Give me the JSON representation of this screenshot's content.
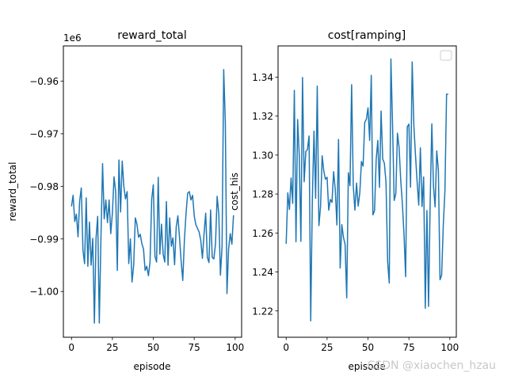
{
  "figure": {
    "watermark": "CSDN @xiaochen_hzau",
    "line_color": "#1f77b4"
  },
  "chart_data": [
    {
      "type": "line",
      "title": "reward_total",
      "xlabel": "episode",
      "ylabel": "reward_total",
      "offset_label": "1e6",
      "xlim": [
        -4.95,
        103.95
      ],
      "ylim": [
        -1.0087,
        -0.9533
      ],
      "xticks": [
        0,
        25,
        50,
        75,
        100
      ],
      "yticks": [
        -0.96,
        -0.97,
        -0.98,
        -0.99,
        -1.0
      ],
      "ytick_labels": [
        "−0.96",
        "−0.97",
        "−0.98",
        "−0.99",
        "−1.00"
      ],
      "legend": "none",
      "series": [
        {
          "name": "reward_total",
          "values": [
            -0.9838,
            -0.9817,
            -0.9867,
            -0.9853,
            -0.9896,
            -0.9828,
            -0.9803,
            -0.9921,
            -0.9947,
            -0.9822,
            -0.9952,
            -0.9868,
            -0.995,
            -0.9899,
            -1.006,
            -0.9899,
            -0.9857,
            -1.006,
            -0.9898,
            -0.9757,
            -0.9862,
            -0.9826,
            -0.9869,
            -0.9826,
            -0.989,
            -0.9851,
            -0.9782,
            -0.981,
            -0.996,
            -0.975,
            -0.9849,
            -0.9752,
            -0.98,
            -0.9824,
            -0.981,
            -0.9947,
            -0.99,
            -0.9982,
            -0.995,
            -0.986,
            -0.9872,
            -0.9897,
            -0.9891,
            -0.9909,
            -0.9919,
            -0.996,
            -0.9952,
            -0.997,
            -0.9944,
            -0.9825,
            -0.9797,
            -0.9933,
            -0.9944,
            -0.9783,
            -0.9929,
            -0.9872,
            -0.9929,
            -0.9944,
            -0.9829,
            -0.995,
            -0.986,
            -0.9914,
            -0.9898,
            -0.9949,
            -0.9877,
            -0.9856,
            -0.9897,
            -0.9942,
            -0.9979,
            -0.9902,
            -0.9851,
            -0.9813,
            -0.981,
            -0.9826,
            -0.9817,
            -0.9856,
            -0.9873,
            -0.988,
            -0.9887,
            -0.9903,
            -0.9937,
            -0.989,
            -0.9851,
            -0.9935,
            -0.9945,
            -0.9845,
            -0.9935,
            -0.9938,
            -0.9909,
            -0.9819,
            -0.9852,
            -0.9969,
            -0.9915,
            -0.9578,
            -0.9678,
            -1.0004,
            -0.9919,
            -0.989,
            -0.991,
            -0.9855
          ]
        }
      ]
    },
    {
      "type": "line",
      "title": "cost[ramping]",
      "xlabel": "episode",
      "ylabel": "cost_his",
      "xlim": [
        -4.95,
        103.95
      ],
      "ylim": [
        1.2065,
        1.356
      ],
      "xticks": [
        0,
        25,
        50,
        75,
        100
      ],
      "yticks": [
        1.22,
        1.24,
        1.26,
        1.28,
        1.3,
        1.32,
        1.34
      ],
      "ytick_labels": [
        "1.22",
        "1.24",
        "1.26",
        "1.28",
        "1.30",
        "1.32",
        "1.34"
      ],
      "legend": "top-right (empty)",
      "series": [
        {
          "name": "cost_his",
          "values": [
            1.2545,
            1.2806,
            1.2721,
            1.2882,
            1.2752,
            1.3332,
            1.2555,
            1.3182,
            1.2998,
            1.2557,
            1.3398,
            1.2863,
            1.3018,
            1.3028,
            1.3098,
            1.2149,
            1.2774,
            1.3123,
            1.2778,
            1.3354,
            1.2638,
            1.2733,
            1.2996,
            1.2917,
            1.2876,
            1.2886,
            1.2717,
            1.2772,
            1.2757,
            1.2915,
            1.2823,
            1.2641,
            1.308,
            1.242,
            1.2643,
            1.2578,
            1.2541,
            1.2267,
            1.2909,
            1.2843,
            1.3361,
            1.2843,
            1.2717,
            1.2856,
            1.2738,
            1.2807,
            1.2967,
            1.2943,
            1.3167,
            1.3184,
            1.3242,
            1.3075,
            1.3409,
            1.2693,
            1.2714,
            1.2976,
            1.3075,
            1.2834,
            1.3226,
            1.2979,
            1.2958,
            1.286,
            1.2452,
            1.2343,
            1.3493,
            1.3155,
            1.2767,
            1.2802,
            1.3112,
            1.3038,
            1.2871,
            1.2749,
            1.2593,
            1.2376,
            1.3145,
            1.3159,
            1.2835,
            1.3478,
            1.3155,
            1.3001,
            1.2864,
            1.2743,
            1.3037,
            1.2736,
            1.2887,
            1.2214,
            1.2715,
            1.2223,
            1.2765,
            1.316,
            1.284,
            1.2734,
            1.3021,
            1.2922,
            1.236,
            1.2384,
            1.2639,
            1.2816,
            1.3312,
            1.3312
          ]
        }
      ]
    }
  ]
}
